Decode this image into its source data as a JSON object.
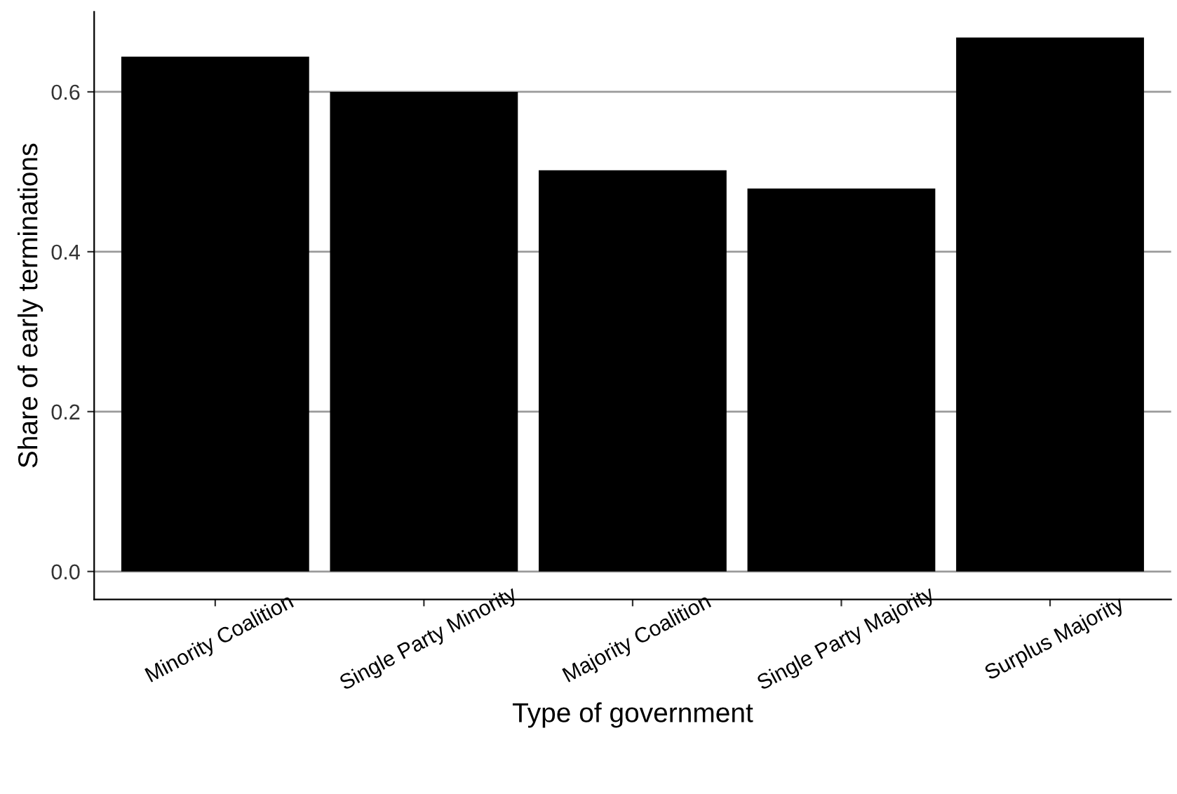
{
  "chart_data": {
    "type": "bar",
    "xlabel": "Type of government",
    "ylabel": "Share of early terminations",
    "categories": [
      "Minority Coalition",
      "Single Party Minority",
      "Majority Coalition",
      "Single Party Majority",
      "Surplus Majority"
    ],
    "values": [
      0.644,
      0.6,
      0.502,
      0.479,
      0.668
    ],
    "color": "#000000",
    "ylim": [
      -0.035,
      0.7
    ],
    "yticks": [
      {
        "value": 0.0,
        "label": "0.0"
      },
      {
        "value": 0.2,
        "label": "0.2"
      },
      {
        "value": 0.4,
        "label": "0.4"
      },
      {
        "value": 0.6,
        "label": "0.6"
      }
    ],
    "grid": "y",
    "legend": false
  }
}
